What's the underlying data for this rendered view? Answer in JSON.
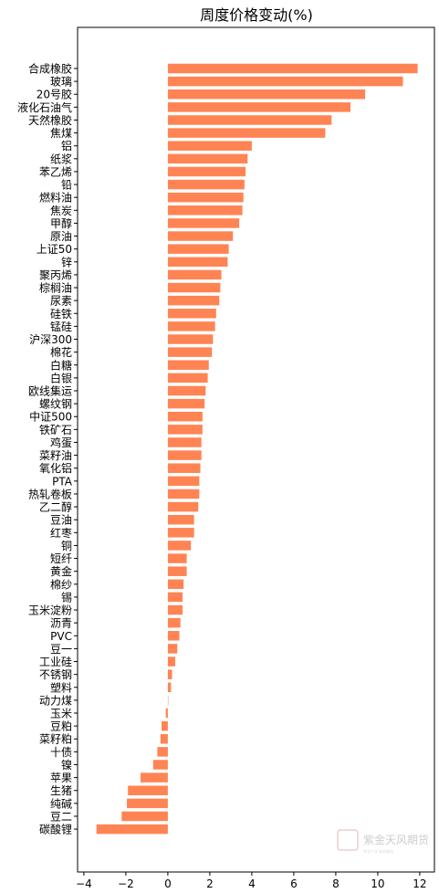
{
  "chart_data": {
    "type": "bar",
    "orientation": "horizontal",
    "title": "周度价格变动(%)",
    "xlabel": "",
    "ylabel": "",
    "xlim": [
      -4.3,
      12.7
    ],
    "xticks": [
      -4,
      -2,
      0,
      2,
      4,
      6,
      8,
      10,
      12
    ],
    "bar_color": "#FF8454",
    "grid": false,
    "categories": [
      "合成橡胶",
      "玻璃",
      "20号胶",
      "液化石油气",
      "天然橡胶",
      "焦煤",
      "铝",
      "纸浆",
      "苯乙烯",
      "铅",
      "燃料油",
      "焦炭",
      "甲醇",
      "原油",
      "上证50",
      "锌",
      "聚丙烯",
      "棕榈油",
      "尿素",
      "硅铁",
      "锰硅",
      "沪深300",
      "棉花",
      "白糖",
      "白银",
      "欧线集运",
      "螺纹钢",
      "中证500",
      "铁矿石",
      "鸡蛋",
      "菜籽油",
      "氧化铝",
      "PTA",
      "热轧卷板",
      "乙二醇",
      "豆油",
      "红枣",
      "铜",
      "短纤",
      "黄金",
      "棉纱",
      "锡",
      "玉米淀粉",
      "沥青",
      "PVC",
      "豆一",
      "工业硅",
      "不锈钢",
      "塑料",
      "动力煤",
      "玉米",
      "豆粕",
      "菜籽粕",
      "十债",
      "镍",
      "苹果",
      "生猪",
      "纯碱",
      "豆二",
      "碳酸锂"
    ],
    "values": [
      11.9,
      11.2,
      9.4,
      8.7,
      7.8,
      7.5,
      4.0,
      3.8,
      3.7,
      3.65,
      3.6,
      3.55,
      3.4,
      3.1,
      2.9,
      2.85,
      2.55,
      2.5,
      2.45,
      2.3,
      2.25,
      2.15,
      2.1,
      1.95,
      1.9,
      1.8,
      1.75,
      1.65,
      1.65,
      1.6,
      1.6,
      1.55,
      1.5,
      1.5,
      1.45,
      1.25,
      1.25,
      1.1,
      0.9,
      0.9,
      0.75,
      0.7,
      0.7,
      0.6,
      0.55,
      0.45,
      0.35,
      0.2,
      0.15,
      0.0,
      -0.1,
      -0.3,
      -0.35,
      -0.5,
      -0.7,
      -1.3,
      -1.9,
      -1.95,
      -2.2,
      -3.4
    ]
  },
  "watermark": {
    "text": "紫金天风期货",
    "sub": "专业产业  研究服务",
    "color": "#c9c9c9"
  }
}
